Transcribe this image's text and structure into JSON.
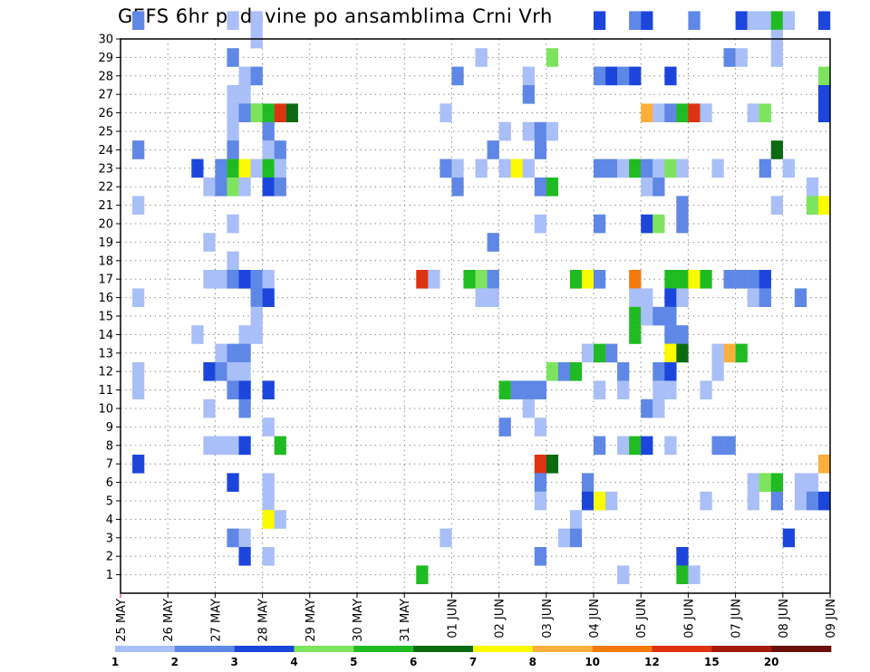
{
  "chart_data": {
    "type": "heatmap",
    "title": "GEFS 6hr padavine po ansamblima Crni Vrh",
    "xlabel": "",
    "ylabel": "",
    "x_tick_labels": [
      "25 MAY",
      "26 MAY",
      "27 MAY",
      "28 MAY",
      "29 MAY",
      "30 MAY",
      "31 MAY",
      "01 JUN",
      "02 JUN",
      "03 JUN",
      "04 JUN",
      "05 JUN",
      "06 JUN",
      "07 JUN",
      "08 JUN",
      "09 JUN"
    ],
    "y_tick_labels": [
      "1",
      "2",
      "3",
      "4",
      "5",
      "6",
      "7",
      "8",
      "9",
      "10",
      "11",
      "12",
      "13",
      "14",
      "15",
      "16",
      "17",
      "18",
      "19",
      "20",
      "21",
      "22",
      "23",
      "24",
      "25",
      "26",
      "27",
      "28",
      "29",
      "30"
    ],
    "y_range": [
      0,
      30
    ],
    "x_range_steps": [
      0,
      60
    ],
    "steps_per_day": 4,
    "grid": true,
    "colorbar": {
      "labels": [
        "1",
        "2",
        "3",
        "4",
        "5",
        "6",
        "7",
        "8",
        "10",
        "12",
        "15",
        "20"
      ],
      "colors": [
        "#a9bff7",
        "#5f87e6",
        "#1c46db",
        "#7ee45f",
        "#20bb23",
        "#0c6a10",
        "#fafa00",
        "#fcaf3c",
        "#f27a0b",
        "#dd3312",
        "#a31b0b",
        "#6b0f0a"
      ]
    },
    "cells": [
      [
        30,
        1,
        1
      ],
      [
        30,
        9,
        0
      ],
      [
        30,
        11,
        0
      ],
      [
        30,
        40,
        2
      ],
      [
        30,
        43,
        1
      ],
      [
        30,
        44,
        2
      ],
      [
        30,
        48,
        1
      ],
      [
        30,
        52,
        2
      ],
      [
        30,
        53,
        0
      ],
      [
        30,
        54,
        0
      ],
      [
        30,
        55,
        4
      ],
      [
        30,
        56,
        0
      ],
      [
        30,
        59,
        2
      ],
      [
        29,
        11,
        0
      ],
      [
        29,
        55,
        0
      ],
      [
        28,
        9,
        1
      ],
      [
        28,
        30,
        0
      ],
      [
        28,
        36,
        3
      ],
      [
        28,
        51,
        1
      ],
      [
        28,
        52,
        0
      ],
      [
        28,
        55,
        0
      ],
      [
        27,
        10,
        0
      ],
      [
        27,
        11,
        1
      ],
      [
        27,
        28,
        1
      ],
      [
        27,
        34,
        0
      ],
      [
        27,
        40,
        1
      ],
      [
        27,
        41,
        2
      ],
      [
        27,
        42,
        1
      ],
      [
        27,
        43,
        2
      ],
      [
        27,
        46,
        2
      ],
      [
        27,
        59,
        3
      ],
      [
        26,
        9,
        0
      ],
      [
        26,
        10,
        0
      ],
      [
        26,
        34,
        1
      ],
      [
        26,
        59,
        2
      ],
      [
        25,
        9,
        0
      ],
      [
        25,
        10,
        1
      ],
      [
        25,
        11,
        2
      ],
      [
        25,
        11,
        3
      ],
      [
        25,
        12,
        4
      ],
      [
        25,
        13,
        9
      ],
      [
        25,
        14,
        5
      ],
      [
        25,
        27,
        0
      ],
      [
        25,
        44,
        7
      ],
      [
        25,
        45,
        0
      ],
      [
        25,
        46,
        1
      ],
      [
        25,
        47,
        4
      ],
      [
        25,
        48,
        9
      ],
      [
        25,
        49,
        0
      ],
      [
        25,
        53,
        0
      ],
      [
        25,
        54,
        3
      ],
      [
        25,
        59,
        2
      ],
      [
        24,
        9,
        0
      ],
      [
        24,
        12,
        1
      ],
      [
        24,
        32,
        0
      ],
      [
        24,
        34,
        0
      ],
      [
        24,
        35,
        1
      ],
      [
        24,
        36,
        0
      ],
      [
        23,
        1,
        1
      ],
      [
        23,
        9,
        1
      ],
      [
        23,
        12,
        0
      ],
      [
        23,
        13,
        1
      ],
      [
        23,
        31,
        1
      ],
      [
        23,
        35,
        1
      ],
      [
        23,
        55,
        5
      ],
      [
        22,
        6,
        2
      ],
      [
        22,
        8,
        1
      ],
      [
        22,
        9,
        0
      ],
      [
        22,
        9,
        4
      ],
      [
        22,
        10,
        6
      ],
      [
        22,
        11,
        0
      ],
      [
        22,
        12,
        4
      ],
      [
        22,
        13,
        0
      ],
      [
        22,
        27,
        1
      ],
      [
        22,
        28,
        0
      ],
      [
        22,
        30,
        0
      ],
      [
        22,
        32,
        0
      ],
      [
        22,
        33,
        6
      ],
      [
        22,
        34,
        0
      ],
      [
        22,
        40,
        1
      ],
      [
        22,
        41,
        1
      ],
      [
        22,
        42,
        0
      ],
      [
        22,
        43,
        4
      ],
      [
        22,
        44,
        1
      ],
      [
        22,
        45,
        0
      ],
      [
        22,
        46,
        3
      ],
      [
        22,
        47,
        0
      ],
      [
        22,
        50,
        0
      ],
      [
        22,
        54,
        1
      ],
      [
        22,
        56,
        0
      ],
      [
        21,
        7,
        0
      ],
      [
        21,
        8,
        1
      ],
      [
        21,
        9,
        3
      ],
      [
        21,
        10,
        0
      ],
      [
        21,
        12,
        2
      ],
      [
        21,
        13,
        1
      ],
      [
        21,
        28,
        1
      ],
      [
        21,
        35,
        1
      ],
      [
        21,
        36,
        4
      ],
      [
        21,
        44,
        0
      ],
      [
        21,
        45,
        1
      ],
      [
        21,
        58,
        0
      ],
      [
        20,
        1,
        0
      ],
      [
        20,
        47,
        1
      ],
      [
        20,
        55,
        0
      ],
      [
        20,
        58,
        3
      ],
      [
        20,
        59,
        6
      ],
      [
        19,
        9,
        0
      ],
      [
        19,
        35,
        0
      ],
      [
        19,
        40,
        1
      ],
      [
        19,
        44,
        2
      ],
      [
        19,
        45,
        3
      ],
      [
        19,
        47,
        1
      ],
      [
        18,
        7,
        0
      ],
      [
        18,
        31,
        1
      ],
      [
        17,
        9,
        0
      ],
      [
        16,
        7,
        0
      ],
      [
        16,
        8,
        0
      ],
      [
        16,
        9,
        1
      ],
      [
        16,
        10,
        2
      ],
      [
        16,
        11,
        1
      ],
      [
        16,
        12,
        0
      ],
      [
        16,
        25,
        9
      ],
      [
        16,
        26,
        0
      ],
      [
        16,
        29,
        4
      ],
      [
        16,
        30,
        3
      ],
      [
        16,
        31,
        1
      ],
      [
        16,
        38,
        4
      ],
      [
        16,
        39,
        6
      ],
      [
        16,
        40,
        1
      ],
      [
        16,
        43,
        8
      ],
      [
        16,
        46,
        4
      ],
      [
        16,
        47,
        4
      ],
      [
        16,
        48,
        6
      ],
      [
        16,
        49,
        4
      ],
      [
        16,
        51,
        1
      ],
      [
        16,
        52,
        1
      ],
      [
        16,
        53,
        1
      ],
      [
        16,
        54,
        2
      ],
      [
        15,
        1,
        0
      ],
      [
        15,
        11,
        1
      ],
      [
        15,
        12,
        2
      ],
      [
        15,
        30,
        0
      ],
      [
        15,
        31,
        0
      ],
      [
        15,
        43,
        0
      ],
      [
        15,
        44,
        0
      ],
      [
        15,
        46,
        2
      ],
      [
        15,
        47,
        0
      ],
      [
        15,
        53,
        0
      ],
      [
        15,
        54,
        1
      ],
      [
        15,
        57,
        1
      ],
      [
        14,
        11,
        0
      ],
      [
        14,
        43,
        4
      ],
      [
        14,
        44,
        0
      ],
      [
        14,
        45,
        1
      ],
      [
        14,
        46,
        1
      ],
      [
        13,
        6,
        0
      ],
      [
        13,
        10,
        0
      ],
      [
        13,
        11,
        0
      ],
      [
        13,
        43,
        4
      ],
      [
        13,
        46,
        1
      ],
      [
        13,
        47,
        1
      ],
      [
        12,
        8,
        0
      ],
      [
        12,
        9,
        1
      ],
      [
        12,
        10,
        1
      ],
      [
        12,
        39,
        0
      ],
      [
        12,
        40,
        4
      ],
      [
        12,
        41,
        1
      ],
      [
        12,
        46,
        6
      ],
      [
        12,
        47,
        5
      ],
      [
        12,
        50,
        0
      ],
      [
        12,
        51,
        7
      ],
      [
        12,
        52,
        4
      ],
      [
        11,
        1,
        0
      ],
      [
        11,
        7,
        2
      ],
      [
        11,
        8,
        1
      ],
      [
        11,
        9,
        0
      ],
      [
        11,
        10,
        0
      ],
      [
        11,
        36,
        3
      ],
      [
        11,
        37,
        1
      ],
      [
        11,
        38,
        4
      ],
      [
        11,
        42,
        1
      ],
      [
        11,
        45,
        1
      ],
      [
        11,
        46,
        2
      ],
      [
        11,
        50,
        0
      ],
      [
        10,
        1,
        0
      ],
      [
        10,
        9,
        1
      ],
      [
        10,
        10,
        2
      ],
      [
        10,
        12,
        2
      ],
      [
        10,
        32,
        4
      ],
      [
        10,
        33,
        1
      ],
      [
        10,
        34,
        1
      ],
      [
        10,
        35,
        1
      ],
      [
        10,
        40,
        0
      ],
      [
        10,
        42,
        0
      ],
      [
        10,
        45,
        0
      ],
      [
        10,
        46,
        0
      ],
      [
        10,
        49,
        0
      ],
      [
        9,
        7,
        0
      ],
      [
        9,
        10,
        1
      ],
      [
        9,
        34,
        0
      ],
      [
        9,
        44,
        1
      ],
      [
        9,
        45,
        0
      ],
      [
        8,
        12,
        0
      ],
      [
        8,
        32,
        1
      ],
      [
        8,
        35,
        0
      ],
      [
        7,
        7,
        0
      ],
      [
        7,
        8,
        0
      ],
      [
        7,
        9,
        0
      ],
      [
        7,
        10,
        2
      ],
      [
        7,
        13,
        4
      ],
      [
        7,
        40,
        1
      ],
      [
        7,
        42,
        0
      ],
      [
        7,
        43,
        4
      ],
      [
        7,
        44,
        2
      ],
      [
        7,
        46,
        0
      ],
      [
        7,
        50,
        1
      ],
      [
        7,
        51,
        1
      ],
      [
        6,
        1,
        2
      ],
      [
        6,
        35,
        9
      ],
      [
        6,
        36,
        5
      ],
      [
        6,
        59,
        7
      ],
      [
        5,
        9,
        2
      ],
      [
        5,
        12,
        0
      ],
      [
        5,
        35,
        1
      ],
      [
        5,
        39,
        1
      ],
      [
        5,
        53,
        0
      ],
      [
        5,
        54,
        3
      ],
      [
        5,
        55,
        4
      ],
      [
        5,
        57,
        0
      ],
      [
        5,
        58,
        0
      ],
      [
        4,
        12,
        0
      ],
      [
        4,
        35,
        0
      ],
      [
        4,
        39,
        2
      ],
      [
        4,
        40,
        6
      ],
      [
        4,
        41,
        0
      ],
      [
        4,
        49,
        0
      ],
      [
        4,
        53,
        0
      ],
      [
        4,
        55,
        1
      ],
      [
        4,
        57,
        0
      ],
      [
        4,
        58,
        1
      ],
      [
        4,
        59,
        2
      ],
      [
        3,
        12,
        6
      ],
      [
        3,
        13,
        0
      ],
      [
        3,
        38,
        0
      ],
      [
        2,
        9,
        1
      ],
      [
        2,
        10,
        0
      ],
      [
        2,
        27,
        0
      ],
      [
        2,
        37,
        0
      ],
      [
        2,
        38,
        1
      ],
      [
        2,
        56,
        2
      ],
      [
        1,
        10,
        2
      ],
      [
        1,
        12,
        0
      ],
      [
        1,
        35,
        1
      ],
      [
        1,
        47,
        2
      ],
      [
        0,
        25,
        4
      ],
      [
        0,
        42,
        0
      ],
      [
        0,
        47,
        4
      ],
      [
        0,
        48,
        0
      ]
    ]
  }
}
